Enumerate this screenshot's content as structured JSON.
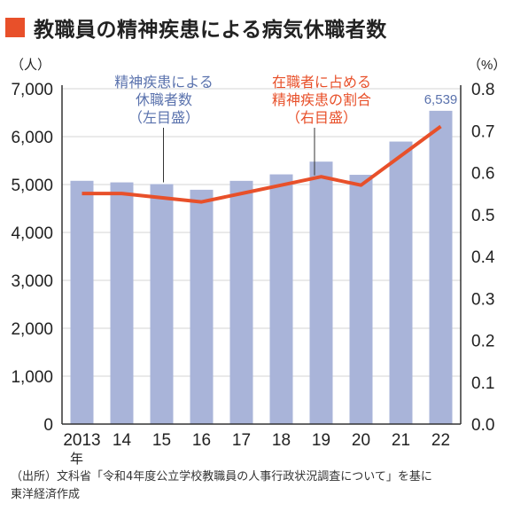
{
  "title": "教職員の精神疾患による病気休職者数",
  "colors": {
    "accent": "#e8502a",
    "bar": "#a9b4d9",
    "left_annotation": "#5a72ad",
    "line": "#e8502a"
  },
  "chart_data": {
    "type": "bar+line",
    "categories": [
      "2013",
      "14",
      "15",
      "16",
      "17",
      "18",
      "19",
      "20",
      "21",
      "22"
    ],
    "x_year_suffix": "年",
    "series": [
      {
        "values": [
          5078,
          5045,
          5009,
          4891,
          5077,
          5212,
          5478,
          5203,
          5897,
          6539
        ],
        "axis": "left",
        "type": "bar"
      },
      {
        "values": [
          0.55,
          0.55,
          0.54,
          0.53,
          0.55,
          0.57,
          0.59,
          0.57,
          0.64,
          0.71
        ],
        "axis": "right",
        "type": "line"
      }
    ],
    "left_axis": {
      "unit": "（人）",
      "min": 0,
      "max": 7000,
      "ticks": [
        "0",
        "1,000",
        "2,000",
        "3,000",
        "4,000",
        "5,000",
        "6,000",
        "7,000"
      ]
    },
    "right_axis": {
      "unit": "（%）",
      "min": 0,
      "max": 0.8,
      "ticks": [
        "0.0",
        "0.1",
        "0.2",
        "0.3",
        "0.4",
        "0.5",
        "0.6",
        "0.7",
        "0.8"
      ]
    },
    "data_labels": [
      {
        "index": 9,
        "text": "6,539"
      }
    ],
    "annotations": [
      {
        "lines": [
          "精神疾患による",
          "休職者数",
          "（左目盛）"
        ],
        "target": "bars"
      },
      {
        "lines": [
          "在職者に占める",
          "精神疾患の割合",
          "（右目盛）"
        ],
        "target": "line"
      }
    ],
    "grid": true
  },
  "source": {
    "line1": "（出所）文科省「令和4年度公立学校教職員の人事行政状況調査について」を基に",
    "line2": "東洋経済作成"
  }
}
